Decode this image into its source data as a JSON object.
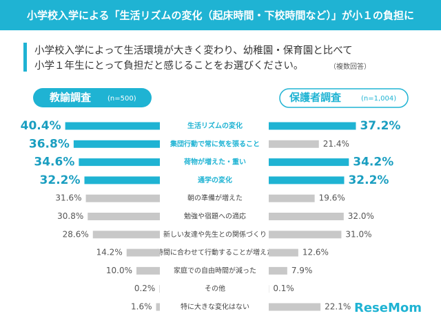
{
  "chart_data": {
    "type": "butterfly",
    "title": "小学校入学による「生活リズムの変化（起床時間・下校時間など）」が小１の負担に",
    "question": [
      "小学校入学によって生活環境が大きく変わり、幼稚園・保育園と比べて",
      "小学１年生にとって負担だと感じることをお選びください。"
    ],
    "note": "（複数回答）",
    "categories": [
      "生活リズムの変化",
      "集団行動で常に気を張ること",
      "荷物が増えた・重い",
      "通学の変化",
      "朝の準備が増えた",
      "勉強や宿題への適応",
      "新しい友達や先生との関係づくり",
      "時間に合わせて行動することが増えた",
      "家庭での自由時間が減った",
      "その他",
      "特に大きな変化はない"
    ],
    "category_colors": [
      "#1fb3d3",
      "#1fb3d3",
      "#1fb3d3",
      "#1fb3d3",
      "#444444",
      "#444444",
      "#444444",
      "#444444",
      "#444444",
      "#444444",
      "#444444"
    ],
    "series": [
      {
        "name": "教諭調査",
        "sample": "(n=500)",
        "values": [
          40.4,
          36.8,
          34.6,
          32.2,
          31.6,
          30.8,
          28.6,
          14.2,
          10.0,
          0.2,
          1.6
        ],
        "value_labels": [
          "40.4%",
          "36.8%",
          "34.6%",
          "32.2%",
          "31.6%",
          "30.8%",
          "28.6%",
          "14.2%",
          "10.0%",
          "0.2%",
          "1.6%"
        ],
        "colors": [
          "#1fb3d3",
          "#1fb3d3",
          "#1fb3d3",
          "#1fb3d3",
          "#c8c8c8",
          "#c8c8c8",
          "#c8c8c8",
          "#c8c8c8",
          "#c8c8c8",
          "#c8c8c8",
          "#c8c8c8"
        ]
      },
      {
        "name": "保護者調査",
        "sample": "(n=1,004)",
        "values": [
          37.2,
          21.4,
          34.2,
          32.2,
          19.6,
          32.0,
          31.0,
          12.6,
          7.9,
          0.1,
          22.1
        ],
        "value_labels": [
          "37.2%",
          "21.4%",
          "34.2%",
          "32.2%",
          "19.6%",
          "32.0%",
          "31.0%",
          "12.6%",
          "7.9%",
          "0.1%",
          "22.1%"
        ],
        "colors": [
          "#1fb3d3",
          "#c8c8c8",
          "#1fb3d3",
          "#1fb3d3",
          "#c8c8c8",
          "#c8c8c8",
          "#c8c8c8",
          "#c8c8c8",
          "#c8c8c8",
          "#c8c8c8",
          "#c8c8c8"
        ]
      }
    ],
    "logo": "ReseMom"
  }
}
